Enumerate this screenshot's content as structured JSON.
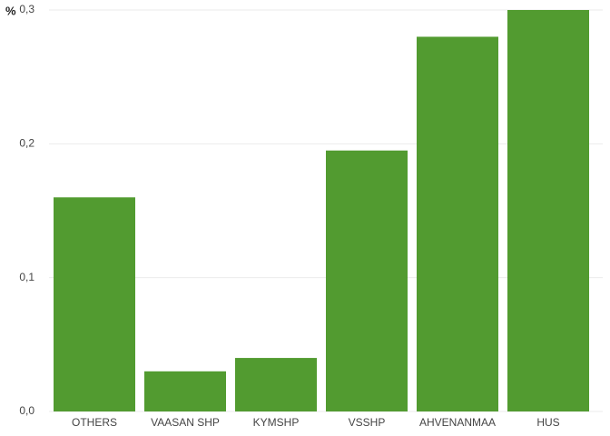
{
  "chart_data": {
    "type": "bar",
    "y_label": "%",
    "categories": [
      "OTHERS",
      "VAASAN SHP",
      "KYMSHP",
      "VSSHP",
      "AHVENANMAA",
      "HUS"
    ],
    "values": [
      0.16,
      0.03,
      0.04,
      0.195,
      0.28,
      0.3
    ],
    "color": "#529b30",
    "ylim": [
      0,
      0.3
    ],
    "yticks": [
      {
        "value": 0,
        "label": "0,0"
      },
      {
        "value": 0.1,
        "label": "0,1"
      },
      {
        "value": 0.2,
        "label": "0,2"
      },
      {
        "value": 0.3,
        "label": "0,3"
      }
    ],
    "grid": true
  }
}
